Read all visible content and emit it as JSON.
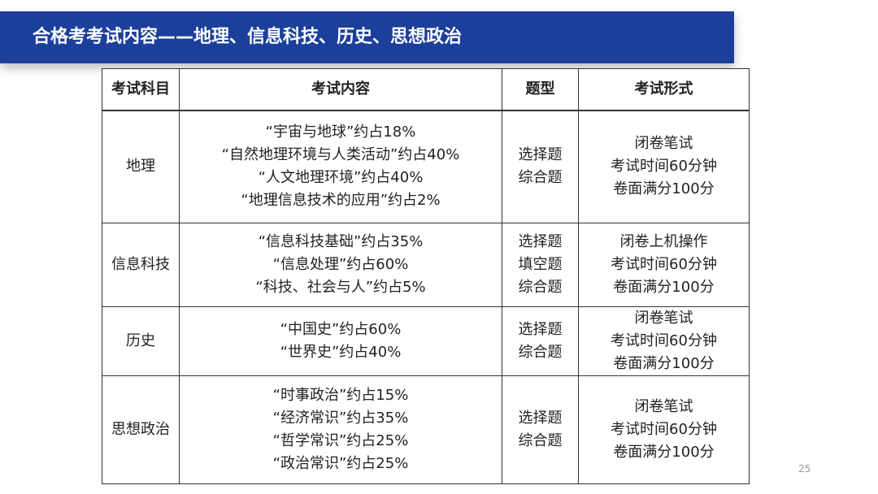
{
  "header": {
    "title": "合格考考试内容——地理、信息科技、历史、思想政治"
  },
  "table": {
    "columns": [
      "考试科目",
      "考试内容",
      "题型",
      "考试形式"
    ],
    "rows": [
      {
        "subject": "地理",
        "content": [
          "“宇宙与地球”约占18%",
          "“自然地理环境与人类活动”约占40%",
          "“人文地理环境”约占40%",
          "“地理信息技术的应用”约占2%"
        ],
        "types": [
          "选择题",
          "综合题"
        ],
        "form": [
          "闭卷笔试",
          "考试时间60分钟",
          "卷面满分100分"
        ]
      },
      {
        "subject": "信息科技",
        "content": [
          "“信息科技基础”约占35%",
          "“信息处理”约占60%",
          "“科技、社会与人”约占5%"
        ],
        "types": [
          "选择题",
          "填空题",
          "综合题"
        ],
        "form": [
          "闭卷上机操作",
          "考试时间60分钟",
          "卷面满分100分"
        ]
      },
      {
        "subject": "历史",
        "content": [
          "“中国史”约占60%",
          "“世界史”约占40%"
        ],
        "types": [
          "选择题",
          "综合题"
        ],
        "form": [
          "闭卷笔试",
          "考试时间60分钟",
          "卷面满分100分"
        ]
      },
      {
        "subject": "思想政治",
        "content": [
          "“时事政治”约占15%",
          "“经济常识”约占35%",
          "“哲学常识”约占25%",
          "“政治常识”约占25%"
        ],
        "types": [
          "选择题",
          "综合题"
        ],
        "form": [
          "闭卷笔试",
          "考试时间60分钟",
          "卷面满分100分"
        ]
      }
    ]
  },
  "page_number": "25"
}
